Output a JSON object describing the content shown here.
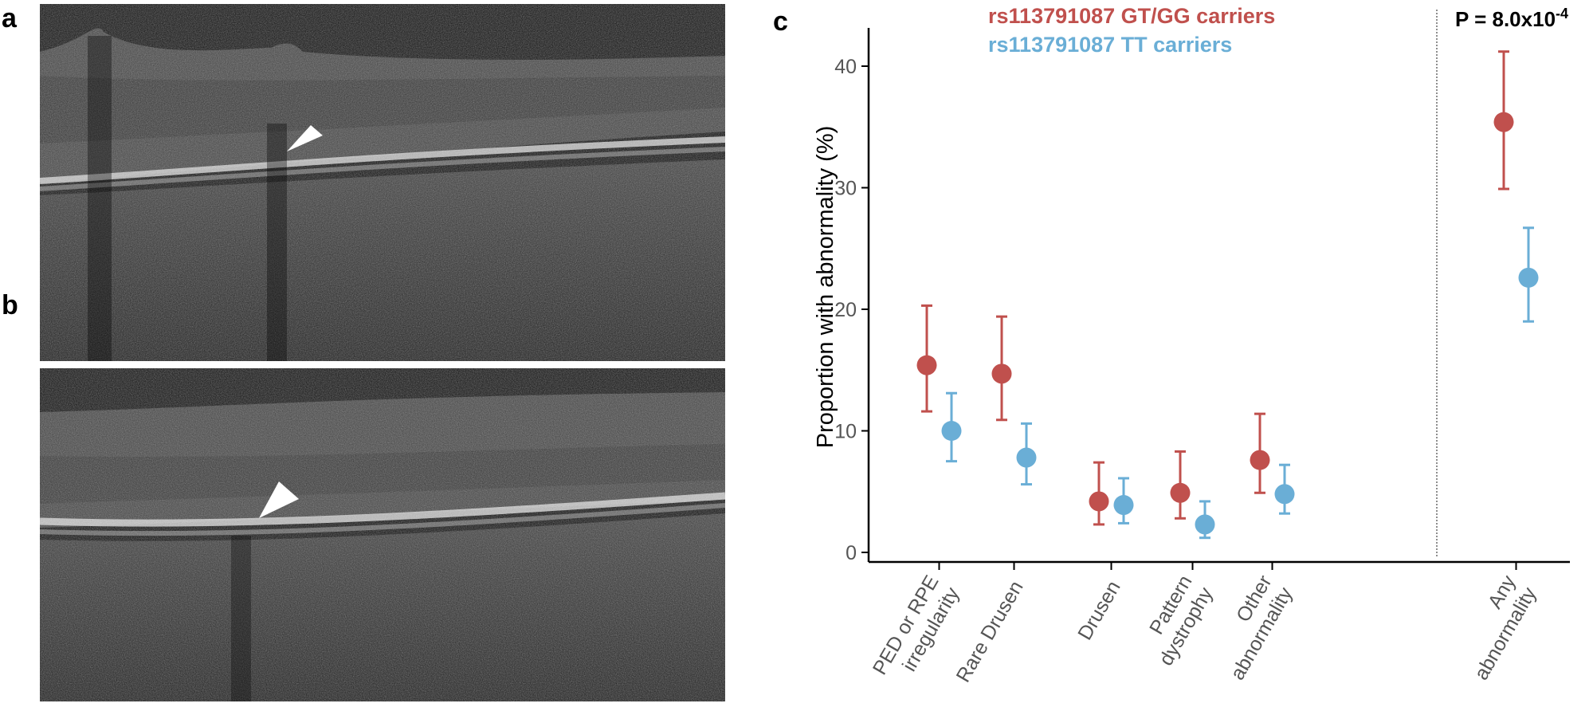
{
  "panels": {
    "a": "a",
    "b": "b",
    "c": "c"
  },
  "colors": {
    "gt_gg": "#c0504d",
    "tt": "#6aaed6",
    "axis": "#000000",
    "tick_label": "#555555"
  },
  "chart_data": {
    "type": "scatter",
    "ylabel": "Proportion with abnormality (%)",
    "ylim": [
      0,
      42
    ],
    "yticks": [
      0,
      10,
      20,
      30,
      40
    ],
    "categories": [
      [
        "PED or RPE",
        "irregularity"
      ],
      [
        "Rare Drusen"
      ],
      [
        "Drusen"
      ],
      [
        "Pattern",
        "dystrophy"
      ],
      [
        "Other",
        "abnormality"
      ],
      [
        "Any",
        "abnormality"
      ]
    ],
    "series": [
      {
        "name": "rs113791087 GT/GG carriers",
        "values": [
          15.4,
          14.7,
          4.2,
          4.9,
          7.6,
          35.4
        ],
        "lower": [
          11.6,
          10.9,
          2.3,
          2.8,
          4.9,
          29.9
        ],
        "upper": [
          20.3,
          19.4,
          7.4,
          8.3,
          11.4,
          41.2
        ]
      },
      {
        "name": "rs113791087 TT carriers",
        "values": [
          10.0,
          7.8,
          3.9,
          2.3,
          4.8,
          22.6
        ],
        "lower": [
          7.5,
          5.6,
          2.4,
          1.2,
          3.2,
          19.0
        ],
        "upper": [
          13.1,
          10.6,
          6.1,
          4.2,
          7.2,
          26.7
        ]
      }
    ],
    "annotation": "P = 8.0x10",
    "annotation_exponent": "-4",
    "grid": false,
    "legend_position": "top"
  }
}
